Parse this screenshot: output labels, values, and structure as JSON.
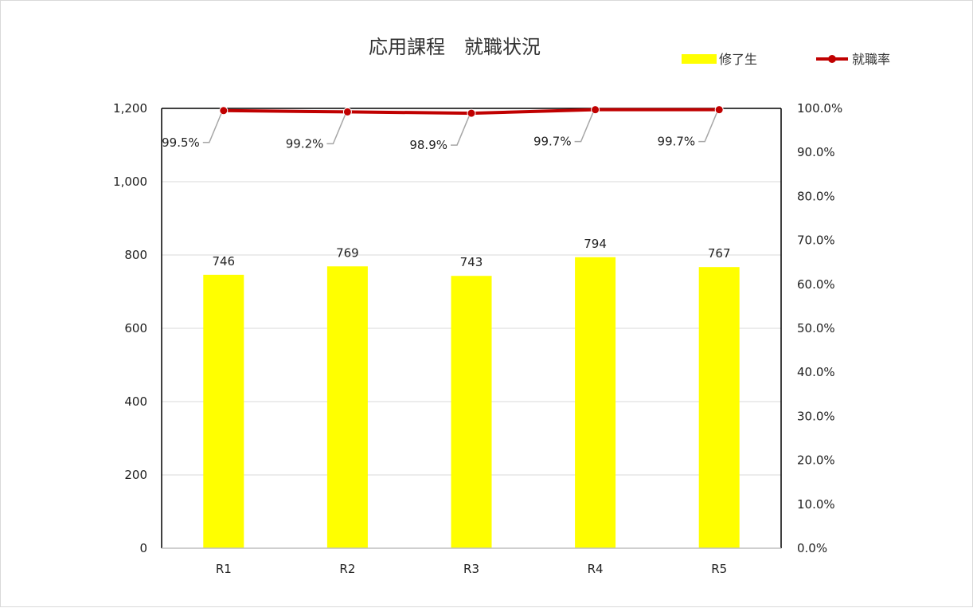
{
  "chart_data": {
    "type": "bar",
    "title": "応用課程　就職状況",
    "categories": [
      "R1",
      "R2",
      "R3",
      "R4",
      "R5"
    ],
    "series": [
      {
        "name": "修了生",
        "kind": "bar",
        "axis": "left",
        "color": "#ffff00",
        "values": [
          746,
          769,
          743,
          794,
          767
        ],
        "labels": [
          "746",
          "769",
          "743",
          "794",
          "767"
        ]
      },
      {
        "name": "就職率",
        "kind": "line",
        "axis": "right",
        "color": "#c00000",
        "values": [
          99.5,
          99.2,
          98.9,
          99.7,
          99.7
        ],
        "labels": [
          "99.5%",
          "99.2%",
          "98.9%",
          "99.7%",
          "99.7%"
        ]
      }
    ],
    "y_left": {
      "ylim": [
        0,
        1200
      ],
      "ticks": [
        0,
        200,
        400,
        600,
        800,
        1000,
        1200
      ],
      "tick_labels": [
        "0",
        "200",
        "400",
        "600",
        "800",
        "1,000",
        "1,200"
      ]
    },
    "y_right": {
      "ylim": [
        0,
        100
      ],
      "ticks": [
        0,
        10,
        20,
        30,
        40,
        50,
        60,
        70,
        80,
        90,
        100
      ],
      "tick_labels": [
        "0.0%",
        "10.0%",
        "20.0%",
        "30.0%",
        "40.0%",
        "50.0%",
        "60.0%",
        "70.0%",
        "80.0%",
        "90.0%",
        "100.0%"
      ]
    },
    "grid": true,
    "legend_position": "top-right",
    "gridline_color": "#d9d9d9"
  }
}
